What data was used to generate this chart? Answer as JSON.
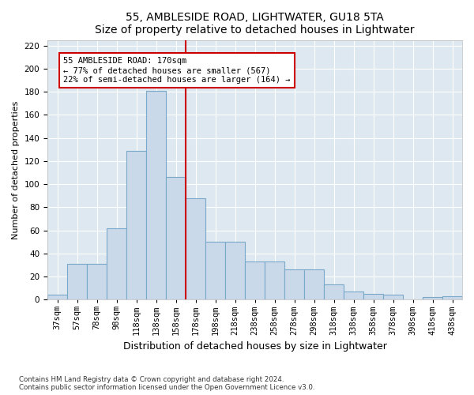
{
  "title": "55, AMBLESIDE ROAD, LIGHTWATER, GU18 5TA",
  "subtitle": "Size of property relative to detached houses in Lightwater",
  "xlabel": "Distribution of detached houses by size in Lightwater",
  "ylabel": "Number of detached properties",
  "footnote1": "Contains HM Land Registry data © Crown copyright and database right 2024.",
  "footnote2": "Contains public sector information licensed under the Open Government Licence v3.0.",
  "categories": [
    "37sqm",
    "57sqm",
    "78sqm",
    "98sqm",
    "118sqm",
    "138sqm",
    "158sqm",
    "178sqm",
    "198sqm",
    "218sqm",
    "238sqm",
    "258sqm",
    "278sqm",
    "298sqm",
    "318sqm",
    "338sqm",
    "358sqm",
    "378sqm",
    "398sqm",
    "418sqm",
    "438sqm"
  ],
  "values": [
    4,
    31,
    31,
    62,
    129,
    181,
    106,
    88,
    50,
    50,
    33,
    33,
    26,
    26,
    13,
    7,
    5,
    4,
    0,
    2,
    3
  ],
  "bar_color": "#c9d9ea",
  "bar_edge_color": "#7aa8c8",
  "background_color": "#dde8f0",
  "grid_color": "#ffffff",
  "vline_x": 9.5,
  "vline_color": "#cc0000",
  "annotation_text": "55 AMBLESIDE ROAD: 170sqm\n← 77% of detached houses are smaller (567)\n22% of semi-detached houses are larger (164) →",
  "annotation_box_color": "#cc0000",
  "ylim": [
    0,
    225
  ],
  "yticks": [
    0,
    20,
    40,
    60,
    80,
    100,
    120,
    140,
    160,
    180,
    200,
    220
  ],
  "title_fontsize": 10,
  "subtitle_fontsize": 9,
  "ylabel_fontsize": 8,
  "xlabel_fontsize": 9,
  "tick_fontsize": 7.5
}
